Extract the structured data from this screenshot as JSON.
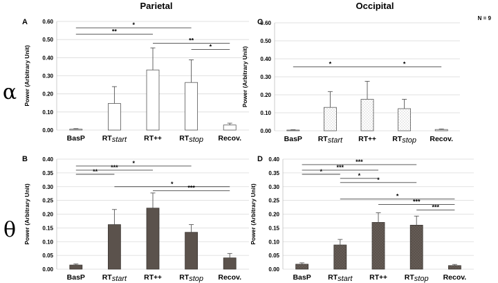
{
  "headers": {
    "left": "Parietal",
    "right": "Occipital"
  },
  "n_label": "N = 9",
  "row_symbols": {
    "alpha": "α",
    "theta": "θ"
  },
  "colors": {
    "outline": "#555555",
    "theta_fill": "#5b524c",
    "stipple": "#b7b7b7",
    "grid": "#d9d9d9"
  },
  "chart_data": [
    {
      "id": "A",
      "panel_label": "A",
      "type": "bar",
      "row": "alpha",
      "region": "Parietal",
      "ylabel": "Power (Arbitrary Unit)",
      "ylim": [
        0,
        0.6
      ],
      "yticks": [
        "0.00",
        "0.10",
        "0.20",
        "0.30",
        "0.40",
        "0.50",
        "0.60"
      ],
      "style": "white",
      "categories": [
        {
          "base": "BasP",
          "sub": ""
        },
        {
          "base": "RT",
          "sub": "start"
        },
        {
          "base": "RT",
          "sub": "++"
        },
        {
          "base": "RT",
          "sub": "stop"
        },
        {
          "base": "Recov.",
          "sub": ""
        }
      ],
      "values": [
        0.005,
        0.147,
        0.332,
        0.263,
        0.028
      ],
      "errors": [
        0.003,
        0.093,
        0.122,
        0.125,
        0.01
      ],
      "significance": [
        {
          "from": 0,
          "to": 3,
          "y": 0.565,
          "label": "*"
        },
        {
          "from": 0,
          "to": 2,
          "y": 0.53,
          "label": "**"
        },
        {
          "from": 2,
          "to": 4,
          "y": 0.48,
          "label": "**"
        },
        {
          "from": 3,
          "to": 4,
          "y": 0.445,
          "label": "*"
        }
      ]
    },
    {
      "id": "C",
      "panel_label": "C",
      "type": "bar",
      "row": "alpha",
      "region": "Occipital",
      "ylabel": "Power (Arbitrary Unit)",
      "ylim": [
        0,
        0.6
      ],
      "yticks": [
        "0.00",
        "0.10",
        "0.20",
        "0.30",
        "0.40",
        "0.50",
        "0.60"
      ],
      "style": "dotted",
      "categories": [
        {
          "base": "BasP",
          "sub": ""
        },
        {
          "base": "RT",
          "sub": "start"
        },
        {
          "base": "RT",
          "sub": "++"
        },
        {
          "base": "RT",
          "sub": "stop"
        },
        {
          "base": "Recov.",
          "sub": ""
        }
      ],
      "values": [
        0.004,
        0.13,
        0.175,
        0.123,
        0.007
      ],
      "errors": [
        0.002,
        0.088,
        0.1,
        0.052,
        0.003
      ],
      "significance": [
        {
          "from": 0,
          "to": 2,
          "y": 0.355,
          "label": "*"
        },
        {
          "from": 2,
          "to": 4,
          "y": 0.355,
          "label": "*"
        }
      ]
    },
    {
      "id": "B",
      "panel_label": "B",
      "type": "bar",
      "row": "theta",
      "region": "Parietal",
      "ylabel": "Power (Arbitrary Unit)",
      "ylim": [
        0,
        0.4
      ],
      "yticks": [
        "0.00",
        "0.05",
        "0.10",
        "0.15",
        "0.20",
        "0.25",
        "0.30",
        "0.35",
        "0.40"
      ],
      "style": "dark",
      "categories": [
        {
          "base": "BasP",
          "sub": ""
        },
        {
          "base": "RT",
          "sub": "start"
        },
        {
          "base": "RT",
          "sub": "++"
        },
        {
          "base": "RT",
          "sub": "stop"
        },
        {
          "base": "Recov.",
          "sub": ""
        }
      ],
      "values": [
        0.015,
        0.162,
        0.222,
        0.134,
        0.041
      ],
      "errors": [
        0.004,
        0.055,
        0.055,
        0.028,
        0.016
      ],
      "significance": [
        {
          "from": 0,
          "to": 3,
          "y": 0.375,
          "label": "*"
        },
        {
          "from": 0,
          "to": 2,
          "y": 0.36,
          "label": "***"
        },
        {
          "from": 0,
          "to": 1,
          "y": 0.345,
          "label": "**"
        },
        {
          "from": 1,
          "to": 4,
          "y": 0.3,
          "label": "*"
        },
        {
          "from": 2,
          "to": 4,
          "y": 0.285,
          "label": "***"
        }
      ]
    },
    {
      "id": "D",
      "panel_label": "D",
      "type": "bar",
      "row": "theta",
      "region": "Occipital",
      "ylabel": "Power (Arbitrary Unit)",
      "ylim": [
        0,
        0.4
      ],
      "yticks": [
        "0.00",
        "0.05",
        "0.10",
        "0.15",
        "0.20",
        "0.25",
        "0.30",
        "0.35",
        "0.40"
      ],
      "style": "dark-dotted",
      "categories": [
        {
          "base": "BasP",
          "sub": ""
        },
        {
          "base": "RT",
          "sub": "start"
        },
        {
          "base": "RT",
          "sub": "++"
        },
        {
          "base": "RT",
          "sub": "stop"
        },
        {
          "base": "Recov.",
          "sub": ""
        }
      ],
      "values": [
        0.018,
        0.088,
        0.17,
        0.16,
        0.013
      ],
      "errors": [
        0.005,
        0.02,
        0.035,
        0.033,
        0.004
      ],
      "significance": [
        {
          "from": 0,
          "to": 3,
          "y": 0.38,
          "label": "***"
        },
        {
          "from": 0,
          "to": 2,
          "y": 0.36,
          "label": "***"
        },
        {
          "from": 0,
          "to": 1,
          "y": 0.345,
          "label": "*"
        },
        {
          "from": 1,
          "to": 2,
          "y": 0.33,
          "label": "*"
        },
        {
          "from": 1,
          "to": 3,
          "y": 0.315,
          "label": "*"
        },
        {
          "from": 1,
          "to": 4,
          "y": 0.255,
          "label": "*"
        },
        {
          "from": 2,
          "to": 4,
          "y": 0.235,
          "label": "***"
        },
        {
          "from": 3,
          "to": 4,
          "y": 0.215,
          "label": "***"
        }
      ]
    }
  ]
}
